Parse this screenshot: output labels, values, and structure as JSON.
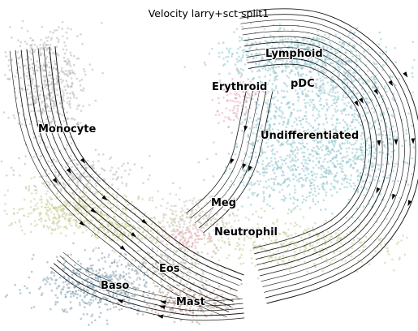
{
  "chart_data": {
    "type": "scatter",
    "title": "Velocity larry+sct split1",
    "xlabel": "",
    "ylabel": "",
    "axes": "off",
    "grid": false,
    "legend": "none (labels on data)",
    "overlay": "velocity streamlines with arrowheads",
    "clusters": [
      {
        "label": "Lymphoid",
        "color": "#8fc4cc"
      },
      {
        "label": "Erythroid",
        "color": "#e3a5b6"
      },
      {
        "label": "pDC",
        "color": "#94c7cf"
      },
      {
        "label": "Undifferentiated",
        "color": "#8cc4cd"
      },
      {
        "label": "Monocyte",
        "color": "#b4b4b4"
      },
      {
        "label": "Meg",
        "color": "#c9c3b6"
      },
      {
        "label": "Neutrophil",
        "color": "#c8cc94"
      },
      {
        "label": "Eos",
        "color": "#b4b7a6"
      },
      {
        "label": "Baso",
        "color": "#7f9eb0"
      },
      {
        "label": "Mast",
        "color": "#b79a8c"
      }
    ],
    "label_color": "#000000",
    "stream_color": "#000000"
  }
}
